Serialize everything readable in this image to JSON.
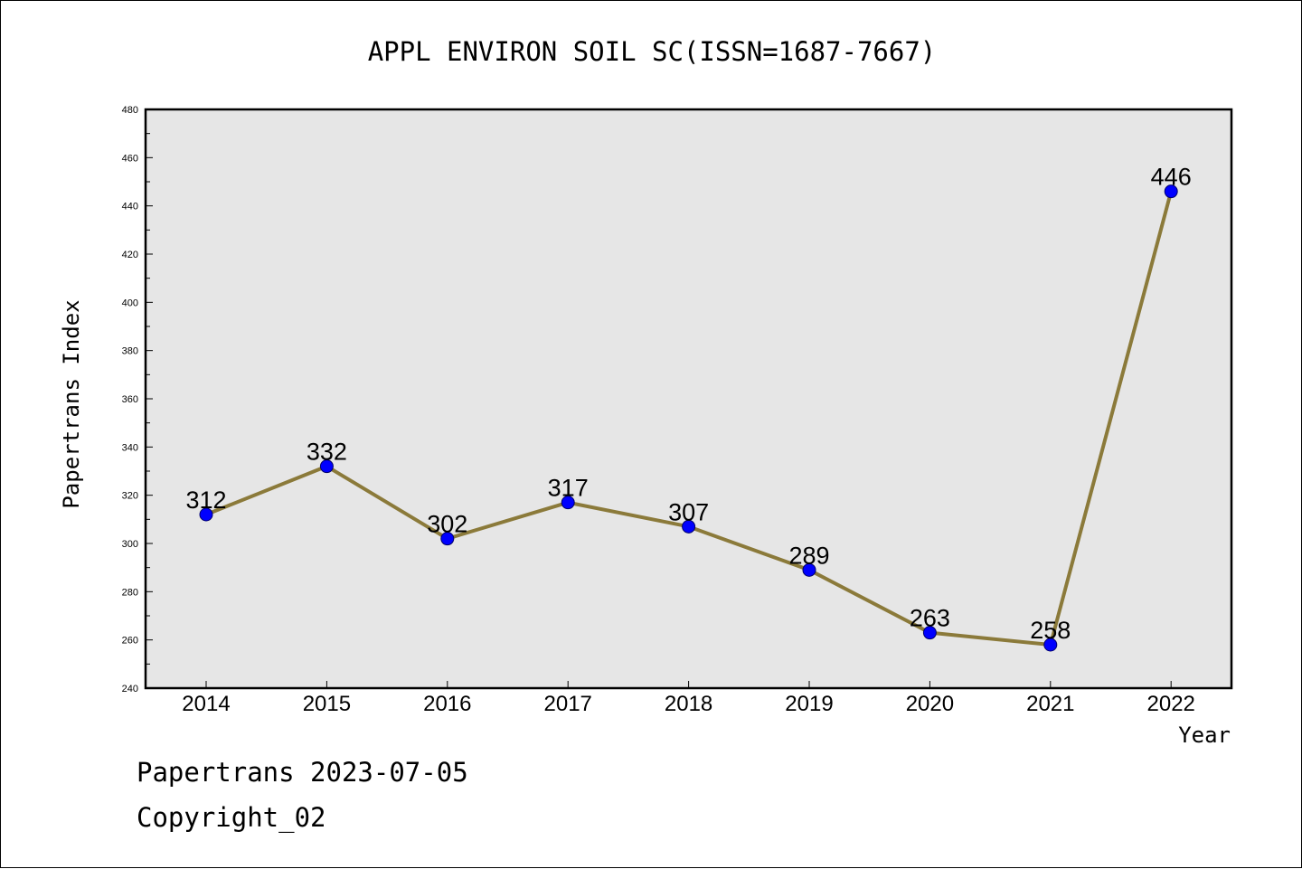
{
  "chart_data": {
    "type": "line",
    "title": "APPL ENVIRON SOIL SC(ISSN=1687-7667)",
    "xlabel": "Year",
    "ylabel": "Papertrans Index",
    "categories": [
      "2014",
      "2015",
      "2016",
      "2017",
      "2018",
      "2019",
      "2020",
      "2021",
      "2022"
    ],
    "values": [
      312,
      332,
      302,
      317,
      307,
      289,
      263,
      258,
      446
    ],
    "ylim": [
      240,
      480
    ],
    "yticks": [
      240,
      260,
      280,
      300,
      320,
      340,
      360,
      380,
      400,
      420,
      440,
      460,
      480
    ],
    "grid": false,
    "legend": false,
    "colors": {
      "line": "#8b7a3a",
      "marker": "#0000ff",
      "plot_background": "#e6e6e6"
    }
  },
  "footer": {
    "line1": "Papertrans 2023-07-05",
    "line2": "Copyright_02"
  }
}
